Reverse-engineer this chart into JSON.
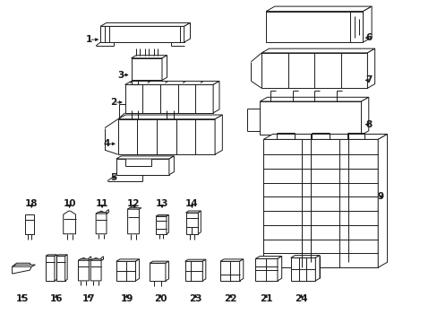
{
  "background_color": "#ffffff",
  "figure_width": 4.89,
  "figure_height": 3.6,
  "dpi": 100,
  "line_color": "#1a1a1a",
  "label_fontsize": 7.5,
  "label_fontweight": "bold"
}
